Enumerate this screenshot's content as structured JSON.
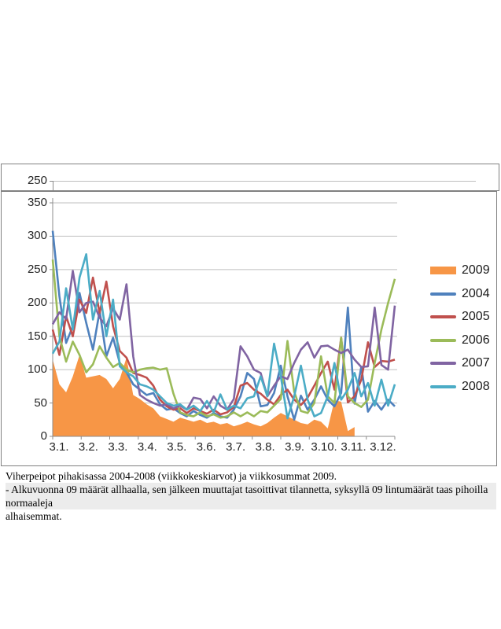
{
  "top_strip": {
    "tick_label": "250"
  },
  "caption": {
    "line1": "Viherpeipot pihakisassa 2004-2008 (viikkokeskiarvot) ja viikkosummat 2009.",
    "line2": "- Alkuvuonna 09 määrät allhaalla, sen jälkeen muuttajat tasoittivat tilannetta, syksyllä 09 lintumäärät taas pihoilla normaaleja",
    "line3": "alhaisemmat."
  },
  "legend": {
    "items": [
      {
        "label": "2009",
        "color": "#F79646",
        "swatch": "area"
      },
      {
        "label": "2004",
        "color": "#4F81BD",
        "swatch": "line"
      },
      {
        "label": "2005",
        "color": "#C0504D",
        "swatch": "line"
      },
      {
        "label": "2006",
        "color": "#9BBB59",
        "swatch": "line"
      },
      {
        "label": "2007",
        "color": "#8064A2",
        "swatch": "line"
      },
      {
        "label": "2008",
        "color": "#4BACC6",
        "swatch": "line"
      }
    ]
  },
  "chart_data": {
    "type": "line",
    "title": "",
    "xlabel": "",
    "ylabel": "",
    "x_unit": "week of year (1-52)",
    "x_tick_labels": [
      "3.1.",
      "3.2.",
      "3.3.",
      "3.4.",
      "3.5.",
      "3.6.",
      "3.7.",
      "3.8.",
      "3.9.",
      "3.10.",
      "3.11.",
      "3.12."
    ],
    "y_ticks": [
      350,
      300,
      250,
      200,
      150,
      100,
      50,
      0
    ],
    "ylim": [
      0,
      350
    ],
    "grid": "horizontal",
    "legend_position": "right",
    "colors": {
      "gridline": "#bfbfbf",
      "axis": "#8c8c8c",
      "frame": "#808080"
    },
    "series": [
      {
        "name": "2009",
        "type": "area",
        "color": "#F79646",
        "values": [
          115,
          78,
          66,
          90,
          122,
          88,
          90,
          92,
          86,
          72,
          86,
          118,
          62,
          56,
          48,
          42,
          30,
          26,
          22,
          28,
          25,
          22,
          25,
          20,
          22,
          18,
          20,
          15,
          18,
          22,
          18,
          15,
          20,
          28,
          35,
          30,
          25,
          20,
          18,
          25,
          22,
          12,
          54,
          52,
          8,
          14,
          null,
          null,
          null,
          null,
          null,
          null
        ]
      },
      {
        "name": "2004",
        "type": "line",
        "color": "#4F81BD",
        "values": [
          308,
          210,
          140,
          165,
          215,
          170,
          130,
          188,
          120,
          148,
          110,
          96,
          78,
          70,
          62,
          65,
          48,
          40,
          42,
          35,
          30,
          38,
          32,
          28,
          35,
          30,
          28,
          40,
          60,
          95,
          86,
          45,
          47,
          65,
          106,
          60,
          25,
          61,
          40,
          55,
          75,
          55,
          45,
          65,
          193,
          49,
          104,
          37,
          53,
          40,
          55,
          45
        ]
      },
      {
        "name": "2005",
        "type": "line",
        "color": "#C0504D",
        "values": [
          160,
          122,
          180,
          150,
          205,
          185,
          238,
          185,
          232,
          165,
          128,
          118,
          95,
          92,
          88,
          76,
          55,
          45,
          40,
          42,
          35,
          42,
          38,
          34,
          40,
          33,
          36,
          44,
          76,
          80,
          70,
          64,
          55,
          48,
          62,
          70,
          55,
          47,
          58,
          76,
          95,
          112,
          70,
          148,
          51,
          60,
          85,
          141,
          104,
          113,
          112,
          115
        ]
      },
      {
        "name": "2006",
        "type": "line",
        "color": "#9BBB59",
        "values": [
          265,
          150,
          112,
          142,
          122,
          96,
          108,
          135,
          118,
          104,
          110,
          100,
          96,
          100,
          102,
          103,
          100,
          102,
          64,
          36,
          32,
          30,
          36,
          30,
          33,
          28,
          30,
          36,
          30,
          36,
          30,
          38,
          36,
          46,
          56,
          143,
          67,
          38,
          35,
          50,
          120,
          60,
          50,
          148,
          60,
          50,
          44,
          55,
          110,
          160,
          200,
          236
        ]
      },
      {
        "name": "2007",
        "type": "line",
        "color": "#8064A2",
        "values": [
          168,
          186,
          176,
          248,
          186,
          200,
          202,
          178,
          165,
          192,
          175,
          228,
          120,
          62,
          55,
          50,
          46,
          48,
          42,
          46,
          40,
          58,
          56,
          42,
          60,
          46,
          40,
          56,
          135,
          120,
          100,
          95,
          60,
          76,
          90,
          86,
          110,
          130,
          141,
          118,
          135,
          136,
          130,
          125,
          130,
          115,
          104,
          105,
          193,
          107,
          100,
          196
        ]
      },
      {
        "name": "2008",
        "type": "line",
        "color": "#4BACC6",
        "values": [
          124,
          142,
          222,
          160,
          238,
          273,
          175,
          218,
          150,
          205,
          105,
          96,
          90,
          78,
          75,
          70,
          60,
          50,
          46,
          48,
          40,
          46,
          38,
          53,
          36,
          63,
          40,
          46,
          42,
          57,
          60,
          90,
          60,
          139,
          90,
          27,
          60,
          106,
          55,
          30,
          35,
          60,
          110,
          55,
          70,
          95,
          60,
          80,
          46,
          85,
          46,
          78
        ]
      }
    ]
  }
}
